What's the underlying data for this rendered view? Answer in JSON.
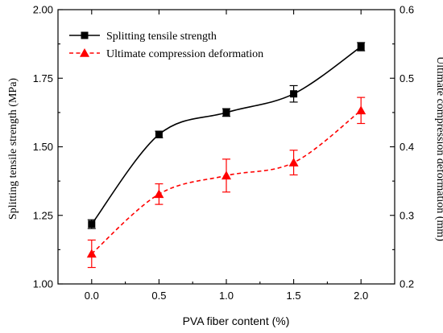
{
  "chart_data": {
    "type": "line",
    "xlabel": "PVA fiber content (%)",
    "x": [
      0.0,
      0.5,
      1.0,
      1.5,
      2.0
    ],
    "xticks": [
      "0.0",
      "0.5",
      "1.0",
      "1.5",
      "2.0"
    ],
    "xlim": [
      -0.25,
      2.25
    ],
    "y_left": {
      "label": "Splitting tensile strength (MPa)",
      "lim": [
        1.0,
        2.0
      ],
      "ticks": [
        "1.00",
        "1.25",
        "1.50",
        "1.75",
        "2.00"
      ]
    },
    "y_right": {
      "label": "Ultimate compression deformation (mm)",
      "lim": [
        0.2,
        0.6
      ],
      "ticks": [
        "0.2",
        "0.3",
        "0.4",
        "0.5",
        "0.6"
      ]
    },
    "series": [
      {
        "name": "Splitting tensile strength",
        "axis": "left",
        "marker": "square",
        "line_style": "solid",
        "color": "#000000",
        "values": [
          1.218,
          1.545,
          1.625,
          1.693,
          1.865
        ],
        "errors": [
          0.016,
          0.012,
          0.014,
          0.03,
          0.015
        ]
      },
      {
        "name": "Ultimate compression deformation",
        "axis": "right",
        "marker": "triangle",
        "line_style": "dashed",
        "color": "#ff0000",
        "values": [
          0.244,
          0.331,
          0.358,
          0.377,
          0.453
        ],
        "errors": [
          0.02,
          0.015,
          0.024,
          0.018,
          0.019
        ]
      }
    ],
    "legend_position": "top-left",
    "grid": false
  }
}
